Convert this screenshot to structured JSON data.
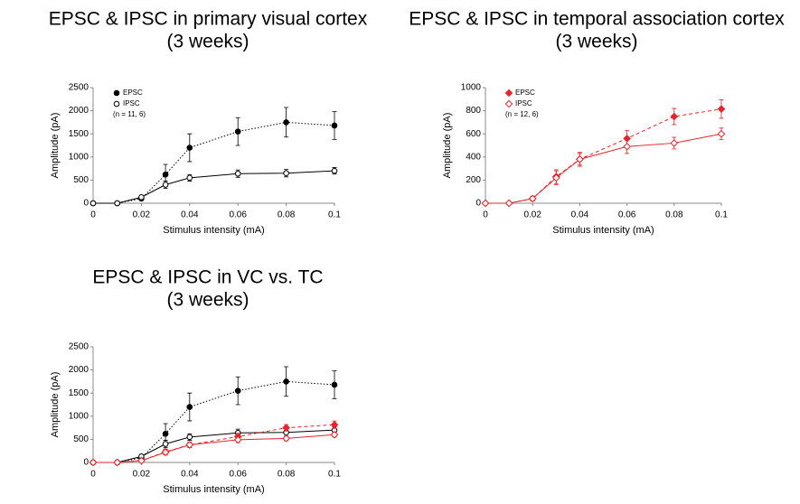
{
  "chart_data": [
    {
      "type": "line",
      "title": "EPSC & IPSC in primary visual cortex",
      "subtitle": "(3 weeks)",
      "x_label": "Stimulus intensity (mA)",
      "y_label": "Amplitude (pA)",
      "x": [
        0,
        0.01,
        0.02,
        0.03,
        0.04,
        0.06,
        0.08,
        0.1
      ],
      "xlim": [
        0,
        0.1
      ],
      "xticks": [
        0,
        0.02,
        0.04,
        0.06,
        0.08,
        0.1
      ],
      "ylim": [
        0,
        2500
      ],
      "yticks": [
        0,
        500,
        1000,
        1500,
        2000,
        2500
      ],
      "legend": "upper left",
      "annotation": "(n = 11, 6)",
      "series": [
        {
          "name": "EPSC",
          "color": "#000000",
          "marker": "circle",
          "filled": true,
          "dash": "dotted",
          "values": [
            0,
            0,
            100,
            620,
            1200,
            1550,
            1750,
            1680
          ],
          "errors": [
            0,
            0,
            30,
            220,
            300,
            300,
            320,
            300
          ]
        },
        {
          "name": "IPSC",
          "color": "#000000",
          "marker": "circle",
          "filled": false,
          "dash": "solid",
          "values": [
            0,
            0,
            130,
            400,
            550,
            640,
            650,
            700
          ],
          "errors": [
            0,
            0,
            30,
            80,
            70,
            80,
            80,
            70
          ]
        }
      ]
    },
    {
      "type": "line",
      "title": "EPSC & IPSC in temporal association cortex",
      "subtitle": "(3 weeks)",
      "x_label": "Stimulus intensity (mA)",
      "y_label": "Amplitude (pA)",
      "x": [
        0,
        0.01,
        0.02,
        0.03,
        0.04,
        0.06,
        0.08,
        0.1
      ],
      "xlim": [
        0,
        0.1
      ],
      "xticks": [
        0,
        0.02,
        0.04,
        0.06,
        0.08,
        0.1
      ],
      "ylim": [
        0,
        1000
      ],
      "yticks": [
        0,
        200,
        400,
        600,
        800,
        1000
      ],
      "legend": "upper left",
      "annotation": "(n = 12, 6)",
      "series": [
        {
          "name": "EPSC",
          "color": "#e8232a",
          "marker": "diamond",
          "filled": true,
          "dash": "dashed",
          "values": [
            0,
            0,
            40,
            230,
            380,
            560,
            750,
            815
          ],
          "errors": [
            0,
            0,
            20,
            60,
            60,
            70,
            70,
            80
          ]
        },
        {
          "name": "IPSC",
          "color": "#e8232a",
          "marker": "diamond",
          "filled": false,
          "dash": "solid",
          "values": [
            0,
            0,
            40,
            220,
            380,
            490,
            520,
            600
          ],
          "errors": [
            0,
            0,
            20,
            60,
            50,
            60,
            50,
            50
          ]
        }
      ]
    },
    {
      "type": "line",
      "title": "EPSC & IPSC in VC vs. TC",
      "subtitle": "(3 weeks)",
      "x_label": "Stimulus intensity (mA)",
      "y_label": "Amplitude (pA)",
      "x": [
        0,
        0.01,
        0.02,
        0.03,
        0.04,
        0.06,
        0.08,
        0.1
      ],
      "xlim": [
        0,
        0.1
      ],
      "xticks": [
        0,
        0.02,
        0.04,
        0.06,
        0.08,
        0.1
      ],
      "ylim": [
        0,
        2500
      ],
      "yticks": [
        0,
        500,
        1000,
        1500,
        2000,
        2500
      ],
      "series": [
        {
          "color": "#000000",
          "marker": "circle",
          "filled": true,
          "dash": "dotted",
          "values": [
            0,
            0,
            100,
            620,
            1200,
            1550,
            1750,
            1680
          ],
          "errors": [
            0,
            0,
            30,
            220,
            300,
            300,
            320,
            300
          ]
        },
        {
          "color": "#000000",
          "marker": "circle",
          "filled": false,
          "dash": "solid",
          "values": [
            0,
            0,
            130,
            400,
            550,
            640,
            650,
            700
          ],
          "errors": [
            0,
            0,
            30,
            80,
            70,
            80,
            80,
            70
          ]
        },
        {
          "color": "#e8232a",
          "marker": "diamond",
          "filled": true,
          "dash": "dashed",
          "values": [
            0,
            0,
            40,
            230,
            380,
            560,
            750,
            815
          ],
          "errors": [
            0,
            0,
            20,
            60,
            60,
            70,
            70,
            80
          ]
        },
        {
          "color": "#e8232a",
          "marker": "diamond",
          "filled": false,
          "dash": "solid",
          "values": [
            0,
            0,
            40,
            220,
            380,
            490,
            520,
            600
          ],
          "errors": [
            0,
            0,
            20,
            60,
            50,
            60,
            50,
            50
          ]
        }
      ]
    }
  ]
}
